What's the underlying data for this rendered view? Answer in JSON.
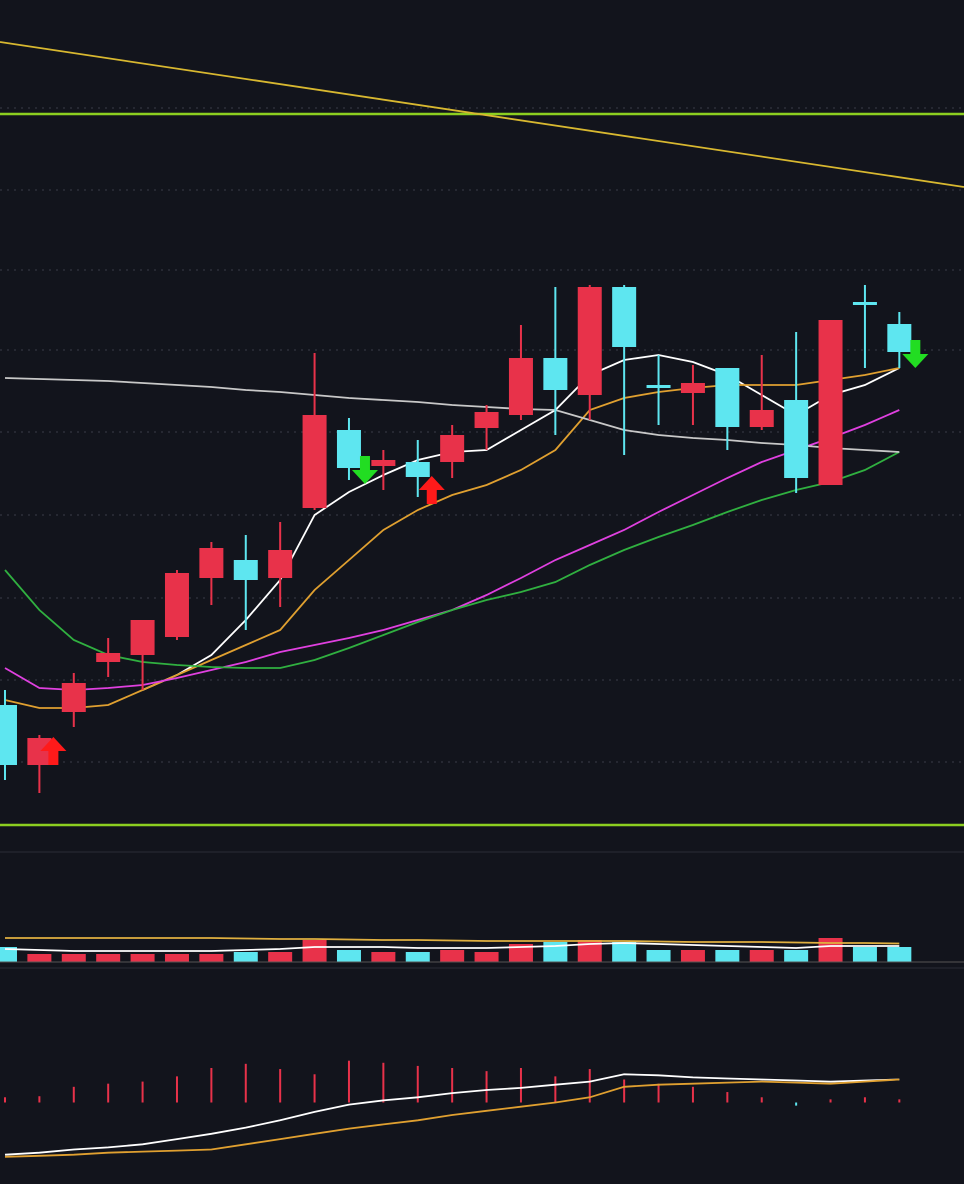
{
  "chart_data": {
    "type": "candlestick",
    "background": "#12141c",
    "up_color": "#e8324a",
    "down_color": "#5ee6f0",
    "xlim": [
      -0.145,
      27.88
    ],
    "ylim": [
      0,
      83
    ],
    "yticks": [
      6.8,
      15,
      23.2,
      31.5,
      39.8,
      48,
      56,
      64,
      72.2
    ],
    "grid": true,
    "open": [
      12.5,
      6.5,
      11.8,
      16.8,
      17.5,
      19.3,
      25.2,
      27,
      25.2,
      32.2,
      40,
      36.4,
      36.8,
      36.8,
      40.2,
      41.5,
      47.2,
      43.5,
      54.3,
      44.5,
      43.7,
      46.2,
      40.3,
      43,
      34.5,
      52.8,
      50.6
    ],
    "high": [
      14,
      9.5,
      15.7,
      19.2,
      21,
      26,
      28.8,
      29.5,
      30.8,
      47.7,
      41.2,
      38,
      39,
      40.5,
      42.5,
      50.5,
      54.3,
      54.5,
      54.5,
      47.5,
      46.5,
      46.2,
      47.5,
      49.8,
      51,
      54.5,
      51.8
    ],
    "low": [
      5,
      3.7,
      10.3,
      15.3,
      14,
      19,
      22.5,
      20,
      22.3,
      32,
      35,
      34,
      33.3,
      35.2,
      38,
      41,
      39.5,
      41,
      37.5,
      40.5,
      40.5,
      38,
      40,
      33.7,
      34.5,
      46.2,
      46.2
    ],
    "close": [
      6.5,
      9.2,
      14.7,
      17.7,
      21,
      25.7,
      28.2,
      25,
      28,
      41.5,
      36.2,
      37,
      35.3,
      39.5,
      41.8,
      47.2,
      44,
      54.3,
      48.3,
      44.2,
      44.7,
      40.3,
      42,
      35.2,
      51,
      52.5,
      47.8
    ],
    "series": [
      {
        "color": "#ffffff",
        "values": [
          null,
          null,
          null,
          null,
          14,
          15.5,
          17.5,
          21,
          25,
          31.5,
          33.8,
          35.5,
          37,
          37.8,
          38,
          40,
          42,
          45.5,
          47,
          47.5,
          46.8,
          45.5,
          43.5,
          41.5,
          43.5,
          44.5,
          46.2
        ]
      },
      {
        "color": "#e0a030",
        "values": [
          13,
          12.2,
          12.2,
          12.5,
          14,
          15.5,
          17,
          18.5,
          20,
          24,
          27,
          30,
          32,
          33.5,
          34.5,
          36,
          38,
          42,
          43.2,
          43.8,
          44.2,
          44.5,
          44.5,
          44.5,
          45,
          45.5,
          46.2
        ]
      },
      {
        "color": "#e040e0",
        "values": [
          16.2,
          14.2,
          14,
          14.2,
          14.5,
          15.2,
          16,
          16.8,
          17.8,
          18.5,
          19.2,
          20,
          21,
          22,
          23.5,
          25.2,
          27,
          28.5,
          30,
          31.8,
          33.5,
          35.2,
          36.8,
          38,
          39.2,
          40.5,
          42
        ]
      },
      {
        "color": "#30b040",
        "values": [
          26,
          22,
          19,
          17.5,
          16.8,
          16.5,
          16.3,
          16.2,
          16.2,
          17,
          18.2,
          19.5,
          20.8,
          22,
          23,
          23.8,
          24.8,
          26.5,
          28,
          29.3,
          30.5,
          31.8,
          33,
          34,
          34.8,
          36,
          37.8
        ]
      },
      {
        "color": "#c8c8c8",
        "values": [
          45.2,
          45.1,
          45,
          44.9,
          44.7,
          44.5,
          44.3,
          44,
          43.8,
          43.5,
          43.2,
          43,
          42.8,
          42.5,
          42.3,
          42.1,
          42,
          41,
          40,
          39.5,
          39.2,
          39,
          38.7,
          38.5,
          38.2,
          38,
          37.8
        ]
      }
    ],
    "trendline": {
      "color": "#d8b830",
      "x": [
        -0.145,
        27.88
      ],
      "values": [
        78.8,
        64.3
      ]
    },
    "levels": {
      "color": "#8ccf20",
      "values": [
        71.6,
        0.5
      ]
    },
    "buy_signals": [
      1,
      12
    ],
    "sell_signals": [
      10,
      26
    ],
    "volume": {
      "ylim": [
        0,
        112
      ],
      "values": [
        15,
        8,
        8,
        8,
        8,
        8,
        8,
        10,
        10,
        22,
        12,
        10,
        10,
        12,
        10,
        18,
        20,
        22,
        20,
        12,
        12,
        12,
        12,
        12,
        24,
        15,
        15
      ],
      "series": [
        {
          "color": "#e0b040",
          "values": [
            24,
            24,
            24,
            24,
            24,
            24,
            24,
            23.5,
            23,
            23,
            22.5,
            22,
            22,
            21.5,
            21,
            21,
            21,
            21,
            21,
            20.5,
            20,
            20,
            20,
            19.5,
            19,
            19,
            18.5
          ]
        },
        {
          "color": "#ffffff",
          "values": [
            13,
            12,
            11,
            11,
            11,
            11,
            11,
            12,
            13,
            15,
            15,
            15,
            14,
            14,
            14,
            15,
            16,
            18,
            19,
            18,
            17,
            16,
            15,
            14,
            16,
            16,
            16
          ]
        }
      ]
    },
    "macd": {
      "ylim": [
        -78,
        122
      ],
      "hist": [
        5,
        6,
        15,
        18,
        20,
        25,
        33,
        37,
        32,
        27,
        40,
        38,
        35,
        33,
        30,
        33,
        25,
        32,
        22,
        18,
        15,
        10,
        5,
        -3,
        3,
        5,
        3
      ],
      "series": [
        {
          "color": "#ffffff",
          "values": [
            -50,
            -48,
            -45,
            -43,
            -40,
            -35,
            -30,
            -24,
            -17,
            -9,
            -2,
            2,
            5,
            9,
            12,
            14,
            17,
            20,
            27,
            26,
            24,
            23,
            22,
            21,
            20,
            21,
            22
          ]
        },
        {
          "color": "#e0a030",
          "values": [
            -52,
            -51,
            -50,
            -48,
            -47,
            -46,
            -45,
            -40,
            -35,
            -30,
            -25,
            -21,
            -17,
            -12,
            -8,
            -4,
            0,
            5,
            15,
            17,
            18,
            19,
            20,
            19,
            18,
            20,
            22
          ]
        }
      ]
    }
  }
}
